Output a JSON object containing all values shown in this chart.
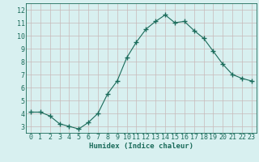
{
  "x": [
    0,
    1,
    2,
    3,
    4,
    5,
    6,
    7,
    8,
    9,
    10,
    11,
    12,
    13,
    14,
    15,
    16,
    17,
    18,
    19,
    20,
    21,
    22,
    23
  ],
  "y": [
    4.1,
    4.1,
    3.8,
    3.2,
    3.0,
    2.8,
    3.3,
    4.0,
    5.5,
    6.5,
    8.3,
    9.5,
    10.5,
    11.1,
    11.6,
    11.0,
    11.1,
    10.4,
    9.8,
    8.8,
    7.8,
    7.0,
    6.7,
    6.5
  ],
  "xlabel": "Humidex (Indice chaleur)",
  "xlim": [
    -0.5,
    23.5
  ],
  "ylim": [
    2.5,
    12.5
  ],
  "yticks": [
    3,
    4,
    5,
    6,
    7,
    8,
    9,
    10,
    11,
    12
  ],
  "xticks": [
    0,
    1,
    2,
    3,
    4,
    5,
    6,
    7,
    8,
    9,
    10,
    11,
    12,
    13,
    14,
    15,
    16,
    17,
    18,
    19,
    20,
    21,
    22,
    23
  ],
  "line_color": "#1a6b5a",
  "marker": "+",
  "marker_size": 4,
  "bg_color": "#d8f0f0",
  "grid_color": "#c8b8b8",
  "label_fontsize": 6.5,
  "tick_fontsize": 6.0
}
